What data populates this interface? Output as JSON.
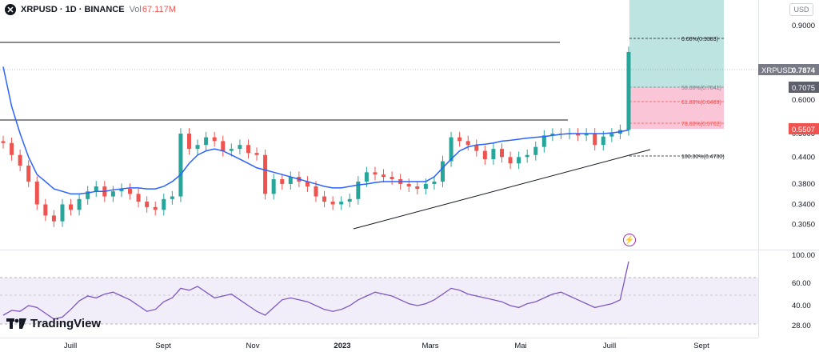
{
  "header": {
    "symbol": "XRPUSD · 1D · BINANCE",
    "volume_label": "Vol",
    "volume_value": "67.117M",
    "currency": "USD"
  },
  "brand": {
    "name": "TradingView"
  },
  "icons": {
    "close": "close-icon",
    "brand_logo": "tradingview-logo-icon",
    "lightning": "lightning-icon"
  },
  "colors": {
    "rsi_line": "#7e57c2",
    "rsi_band": "#ede7f6",
    "ma_line": "#2962ff",
    "candle_up": "#26a69a",
    "candle_down": "#ef5350",
    "tp_zone": "#b2dfdb",
    "sl_zone": "#f8bbd0"
  },
  "price_axis": {
    "labels": [
      "0.9000",
      "0.6000",
      "0.5000",
      "0.4400",
      "0.3800",
      "0.3400",
      "0.3050"
    ],
    "current_symbol": "XRPUSD",
    "current_value": "0.7874",
    "badge_grey": "0.7075",
    "badge_red": "0.5507"
  },
  "rsi_axis": {
    "labels": [
      "100.00",
      "60.00",
      "40.00",
      "28.00"
    ]
  },
  "time_axis": {
    "labels": [
      "Juill",
      "Sept",
      "Nov",
      "2023",
      "Mars",
      "Mai",
      "Juill",
      "Sept"
    ]
  },
  "fib_levels": [
    {
      "label": "0.00%(0.9383)",
      "color": "#131722"
    },
    {
      "label": "50.00%(0.7041)",
      "color": "#787b86"
    },
    {
      "label": "61.80%(0.6489)",
      "color": "#ef5350"
    },
    {
      "label": "78.60%(0.5702)",
      "color": "#ef5350"
    },
    {
      "label": "100.00%(0.4700)",
      "color": "#131722"
    }
  ],
  "chart_data": {
    "type": "candlestick",
    "title": "XRPUSD · 1D · BINANCE",
    "ylim": [
      0.28,
      1.0
    ],
    "price_scale": "log",
    "series": [
      {
        "name": "close",
        "values": [
          0.475,
          0.445,
          0.42,
          0.385,
          0.34,
          0.32,
          0.31,
          0.34,
          0.33,
          0.35,
          0.365,
          0.375,
          0.355,
          0.365,
          0.37,
          0.36,
          0.345,
          0.335,
          0.33,
          0.35,
          0.355,
          0.5,
          0.46,
          0.47,
          0.49,
          0.48,
          0.455,
          0.46,
          0.47,
          0.45,
          0.445,
          0.36,
          0.39,
          0.38,
          0.395,
          0.385,
          0.375,
          0.355,
          0.345,
          0.34,
          0.345,
          0.35,
          0.385,
          0.405,
          0.4,
          0.395,
          0.39,
          0.38,
          0.375,
          0.37,
          0.38,
          0.385,
          0.43,
          0.49,
          0.48,
          0.47,
          0.455,
          0.435,
          0.46,
          0.44,
          0.425,
          0.44,
          0.445,
          0.465,
          0.495,
          0.5,
          0.5,
          0.5,
          0.495,
          0.5,
          0.47,
          0.492,
          0.5,
          0.51,
          0.78
        ]
      },
      {
        "name": "moving average",
        "values": [
          0.72,
          0.58,
          0.5,
          0.44,
          0.4,
          0.385,
          0.37,
          0.365,
          0.36,
          0.36,
          0.362,
          0.365,
          0.365,
          0.368,
          0.37,
          0.372,
          0.372,
          0.37,
          0.37,
          0.375,
          0.385,
          0.4,
          0.425,
          0.445,
          0.455,
          0.46,
          0.455,
          0.445,
          0.435,
          0.425,
          0.415,
          0.41,
          0.405,
          0.4,
          0.395,
          0.39,
          0.385,
          0.38,
          0.375,
          0.372,
          0.372,
          0.375,
          0.378,
          0.38,
          0.383,
          0.385,
          0.385,
          0.385,
          0.385,
          0.385,
          0.385,
          0.395,
          0.415,
          0.435,
          0.455,
          0.465,
          0.47,
          0.472,
          0.475,
          0.48,
          0.482,
          0.485,
          0.488,
          0.49,
          0.492,
          0.495,
          0.498,
          0.5,
          0.5,
          0.5,
          0.5,
          0.5,
          0.502,
          0.505,
          0.51
        ]
      }
    ],
    "rsi": {
      "values": [
        40,
        45,
        44,
        50,
        48,
        42,
        36,
        38,
        46,
        55,
        60,
        58,
        62,
        64,
        60,
        56,
        50,
        44,
        46,
        54,
        58,
        68,
        66,
        70,
        64,
        58,
        60,
        62,
        56,
        50,
        44,
        40,
        48,
        56,
        58,
        56,
        54,
        50,
        46,
        44,
        46,
        50,
        56,
        60,
        64,
        62,
        60,
        56,
        52,
        50,
        52,
        56,
        62,
        68,
        66,
        62,
        60,
        58,
        56,
        54,
        50,
        48,
        52,
        54,
        58,
        62,
        64,
        60,
        56,
        52,
        48,
        50,
        52,
        56,
        96
      ],
      "ylim": [
        20,
        105
      ],
      "band": [
        30,
        70
      ]
    },
    "x_labels": [
      "Juill",
      "Sept",
      "Nov",
      "2023",
      "Mars",
      "Mai",
      "Juill",
      "Sept"
    ],
    "grid": true
  }
}
